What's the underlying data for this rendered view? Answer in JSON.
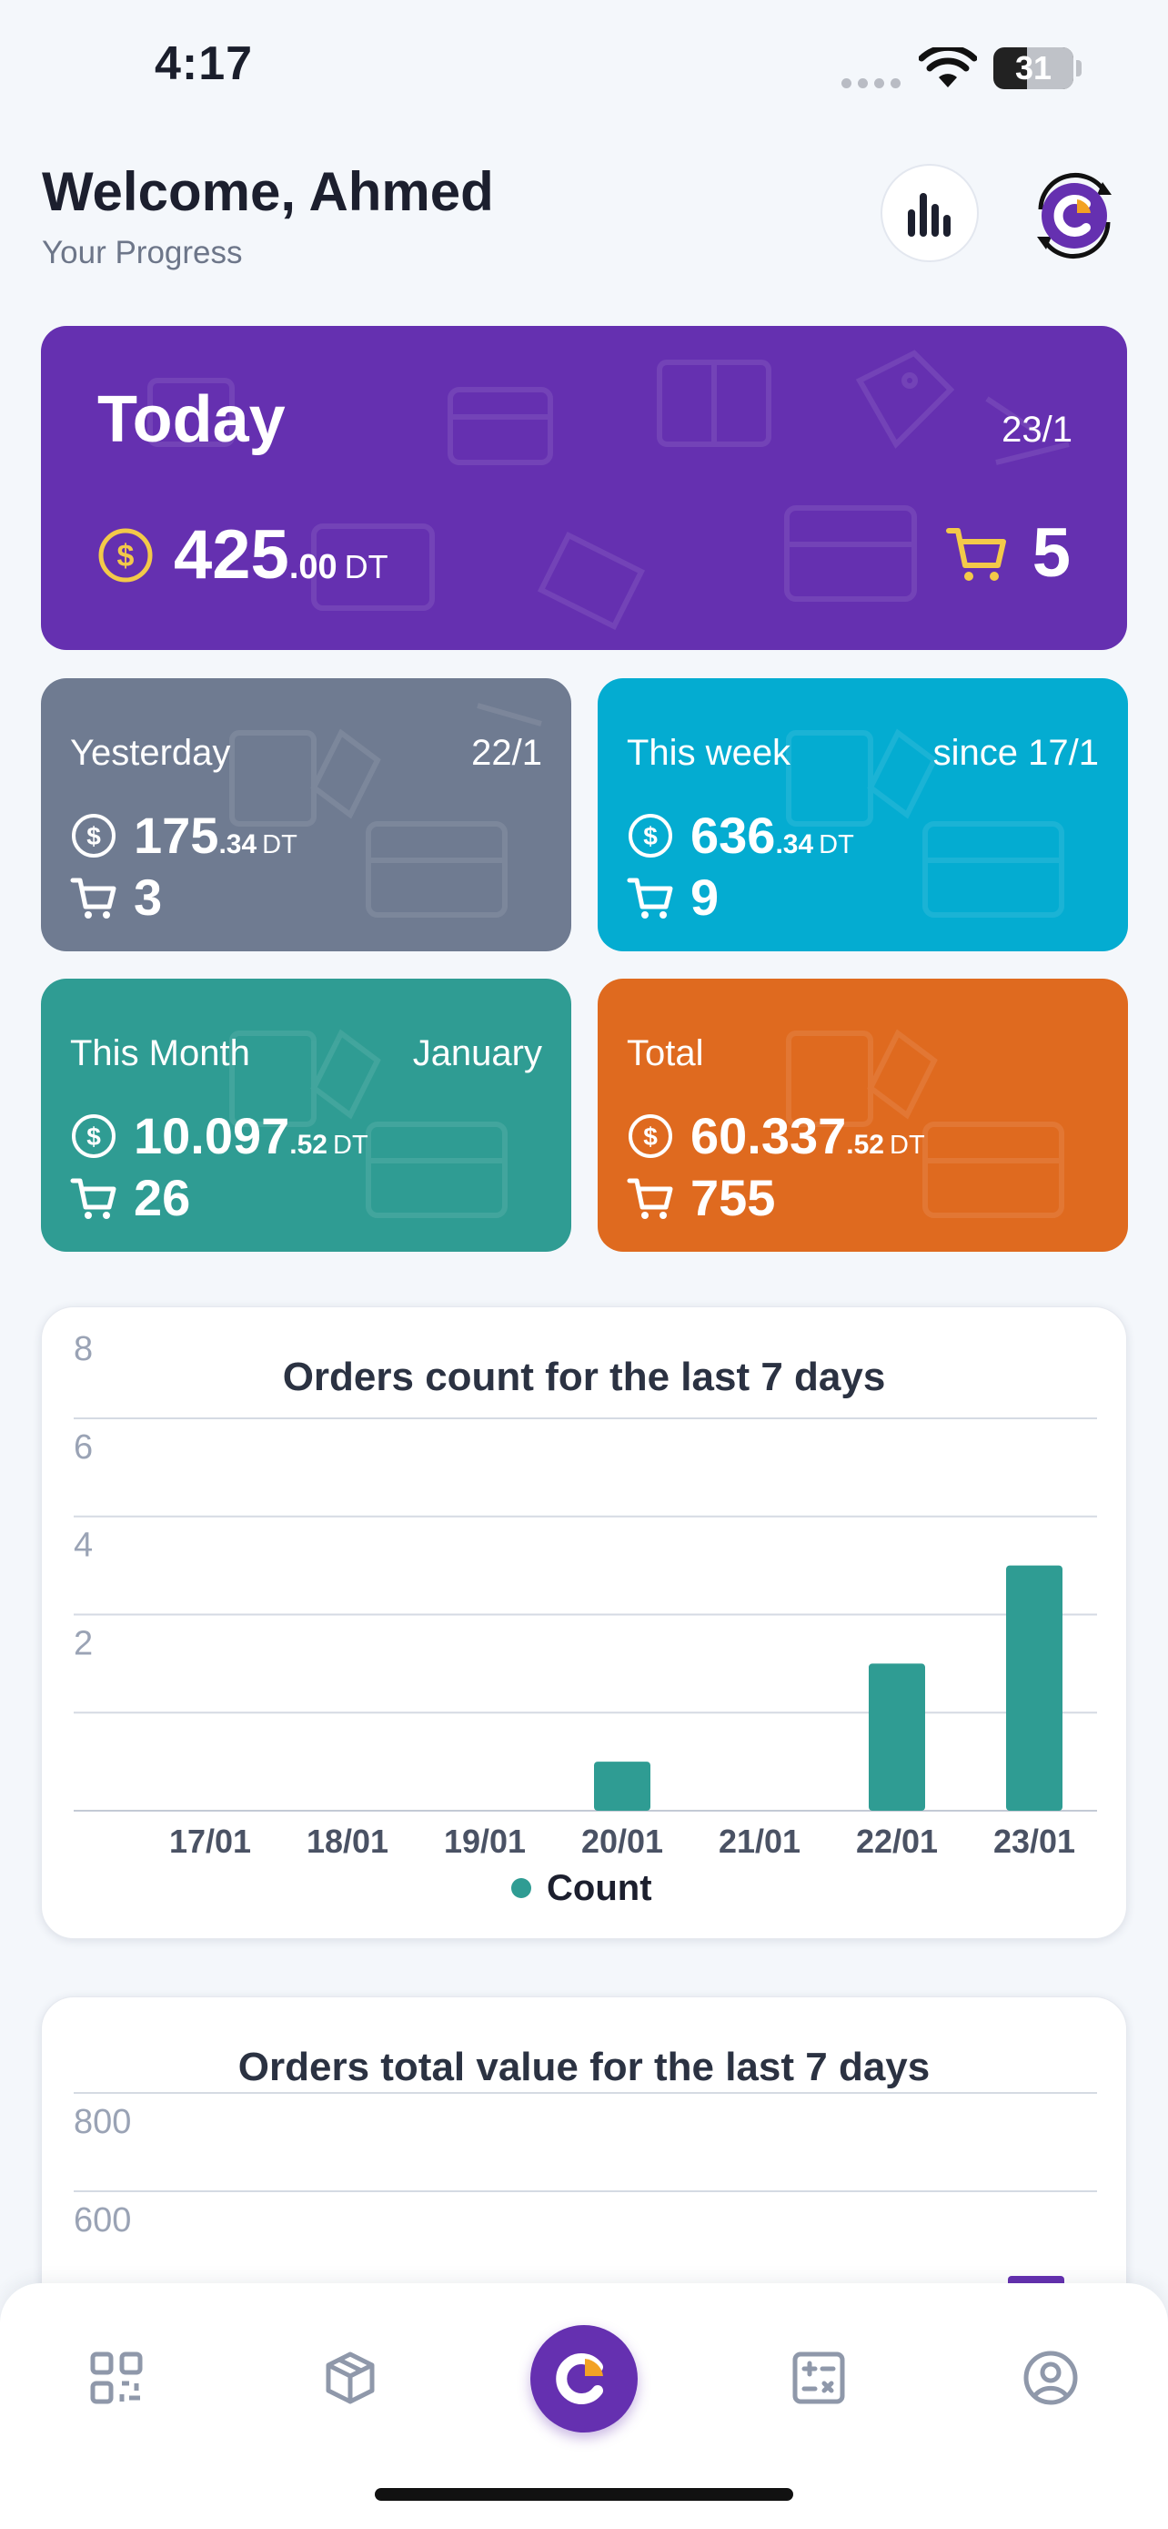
{
  "status": {
    "time": "4:17",
    "battery": "31"
  },
  "header": {
    "title": "Welcome, Ahmed",
    "subtitle": "Your Progress"
  },
  "today": {
    "label": "Today",
    "date": "23/1",
    "amount_int": "425",
    "amount_dec": ".00",
    "currency": "DT",
    "orders": "5"
  },
  "cards": {
    "yesterday": {
      "label": "Yesterday",
      "sub": "22/1",
      "amount_int": "175",
      "amount_dec": ".34",
      "currency": "DT",
      "orders": "3"
    },
    "week": {
      "label": "This week",
      "sub": "since 17/1",
      "amount_int": "636",
      "amount_dec": ".34",
      "currency": "DT",
      "orders": "9"
    },
    "month": {
      "label": "This Month",
      "sub": "January",
      "amount_int": "10.097",
      "amount_dec": ".52",
      "currency": "DT",
      "orders": "26"
    },
    "total": {
      "label": "Total",
      "sub": "",
      "amount_int": "60.337",
      "amount_dec": ".52",
      "currency": "DT",
      "orders": "755"
    }
  },
  "colors": {
    "purple": "#6530b0",
    "teal": "#2f9c93",
    "gray": "#6f7b91",
    "cyan": "#04acd1",
    "orange": "#df6a1f",
    "coin": "#f3c949"
  },
  "chart_data": [
    {
      "type": "bar",
      "title": "Orders count for the last 7 days",
      "categories": [
        "17/01",
        "18/01",
        "19/01",
        "20/01",
        "21/01",
        "22/01",
        "23/01"
      ],
      "series": [
        {
          "name": "Count",
          "values": [
            0,
            0,
            0,
            1,
            0,
            3,
            5
          ],
          "color": "#2f9c93"
        }
      ],
      "yticks": [
        "2",
        "4",
        "6",
        "8"
      ],
      "ylim": [
        0,
        8
      ],
      "legend": "bottom",
      "grid": true
    },
    {
      "type": "bar",
      "title": "Orders total value for the last 7 days",
      "series": [
        {
          "values": [],
          "color": "#6530b0"
        }
      ],
      "yticks": [
        "600",
        "800"
      ],
      "grid": true
    }
  ],
  "nav": {
    "items": [
      "qr-code-icon",
      "box-icon",
      "home-logo-icon",
      "calculator-icon",
      "user-profile-icon"
    ]
  }
}
